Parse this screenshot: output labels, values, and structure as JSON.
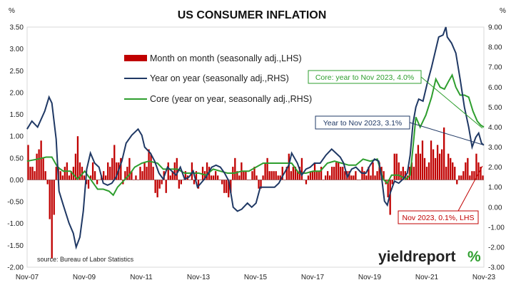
{
  "chart_data": {
    "type": "bar+line",
    "title": "US CONSUMER INFLATION",
    "left_unit": "%",
    "right_unit": "%",
    "ylim_left": [
      -2.0,
      3.5
    ],
    "ylim_right": [
      -3.0,
      9.0
    ],
    "left_ticks": [
      "3.50",
      "3.00",
      "2.50",
      "2.00",
      "1.50",
      "1.00",
      "0.50",
      "0.00",
      "-0.50",
      "-1.00",
      "-1.50",
      "-2.00"
    ],
    "right_ticks": [
      "9.00",
      "8.00",
      "7.00",
      "6.00",
      "5.00",
      "4.00",
      "3.00",
      "2.00",
      "1.00",
      "0.00",
      "-1.00",
      "-2.00",
      "-3.00"
    ],
    "x_ticks": [
      "Nov-07",
      "Nov-09",
      "Nov-11",
      "Nov-13",
      "Nov-15",
      "Nov-17",
      "Nov-19",
      "Nov-21",
      "Nov-23"
    ],
    "x_start": "2007-11",
    "x_end": "2023-11",
    "legend": [
      {
        "label": "Month on month (seasonally adj.,LHS)",
        "color": "#c00000",
        "kind": "bar"
      },
      {
        "label": "Year on year (seasonally adj.,RHS)",
        "color": "#1f3864",
        "kind": "line"
      },
      {
        "label": "Core (year on year, seasonally adj.,RHS)",
        "color": "#2e9e2e",
        "kind": "line"
      }
    ],
    "series": [
      {
        "name": "Month on month (seasonally adj.,LHS)",
        "axis": "left",
        "values": [
          0.8,
          0.3,
          0.3,
          0.2,
          0.6,
          0.7,
          0.9,
          0.5,
          0.2,
          -0.1,
          -0.9,
          -1.8,
          -0.8,
          0.3,
          0.3,
          0.2,
          0.1,
          0.3,
          0.4,
          0.1,
          0.2,
          0.3,
          0.6,
          1.0,
          0.4,
          0.3,
          0.1,
          -0.1,
          -0.2,
          0.1,
          0.4,
          0.2,
          -0.1,
          0.0,
          0.1,
          0.2,
          0.1,
          0.4,
          0.3,
          0.5,
          0.8,
          0.4,
          0.4,
          0.5,
          -0.1,
          0.2,
          0.3,
          0.5,
          0.2,
          0.0,
          0.1,
          0.0,
          0.3,
          0.2,
          0.4,
          0.3,
          0.7,
          0.6,
          0.3,
          -0.3,
          -0.4,
          -0.2,
          -0.1,
          0.2,
          -0.3,
          0.4,
          0.1,
          0.2,
          0.4,
          0.5,
          -0.2,
          -0.1,
          0.0,
          0.2,
          0.1,
          0.0,
          0.4,
          -0.1,
          0.2,
          -0.2,
          0.0,
          0.3,
          0.2,
          0.4,
          0.3,
          0.1,
          0.1,
          0.2,
          0.1,
          0.0,
          -0.1,
          -0.3,
          -0.3,
          -0.4,
          -0.3,
          0.3,
          0.5,
          0.2,
          0.1,
          0.4,
          0.2,
          0.2,
          0.0,
          0.0,
          0.2,
          0.3,
          0.1,
          -0.2,
          -0.2,
          0.1,
          0.4,
          0.5,
          0.2,
          0.2,
          0.2,
          0.2,
          0.1,
          0.1,
          0.3,
          0.0,
          0.3,
          0.6,
          0.2,
          0.3,
          0.3,
          0.2,
          0.3,
          0.5,
          0.0,
          -0.1,
          0.1,
          0.2,
          0.2,
          0.4,
          0.2,
          0.2,
          0.3,
          0.0,
          0.1,
          0.2,
          0.1,
          0.3,
          0.3,
          0.4,
          0.4,
          0.3,
          0.3,
          0.2,
          0.2,
          0.2,
          0.1,
          0.1,
          0.2,
          0.0,
          0.0,
          0.3,
          0.2,
          0.1,
          0.3,
          0.1,
          0.4,
          0.1,
          0.2,
          0.4,
          0.3,
          0.2,
          -0.1,
          -0.4,
          -0.8,
          -0.1,
          0.6,
          0.6,
          0.4,
          0.2,
          0.3,
          0.2,
          0.1,
          0.3,
          0.4,
          0.3,
          0.6,
          0.8,
          0.6,
          0.9,
          0.5,
          0.3,
          0.4,
          0.9,
          0.7,
          0.5,
          0.8,
          0.6,
          0.7,
          1.2,
          0.3,
          0.6,
          0.5,
          0.4,
          0.3,
          -0.1,
          0.1,
          0.1,
          0.2,
          0.4,
          0.5,
          0.1,
          0.2,
          0.2,
          0.6,
          0.4,
          0.3,
          0.1
        ]
      },
      {
        "name": "Year on year (seasonally adj.,RHS)",
        "axis": "right",
        "points": [
          [
            2007.83,
            3.9
          ],
          [
            2008.0,
            4.3
          ],
          [
            2008.2,
            4.0
          ],
          [
            2008.45,
            4.8
          ],
          [
            2008.6,
            5.5
          ],
          [
            2008.7,
            5.2
          ],
          [
            2008.85,
            3.4
          ],
          [
            2008.95,
            0.8
          ],
          [
            2009.1,
            0.1
          ],
          [
            2009.3,
            -0.8
          ],
          [
            2009.45,
            -1.3
          ],
          [
            2009.55,
            -2.0
          ],
          [
            2009.68,
            -1.5
          ],
          [
            2009.8,
            -0.2
          ],
          [
            2009.92,
            1.9
          ],
          [
            2010.05,
            2.7
          ],
          [
            2010.2,
            2.2
          ],
          [
            2010.35,
            2.0
          ],
          [
            2010.5,
            1.2
          ],
          [
            2010.65,
            1.1
          ],
          [
            2010.8,
            1.2
          ],
          [
            2010.95,
            1.5
          ],
          [
            2011.15,
            2.3
          ],
          [
            2011.3,
            3.2
          ],
          [
            2011.5,
            3.6
          ],
          [
            2011.72,
            3.9
          ],
          [
            2011.85,
            3.6
          ],
          [
            2011.95,
            3.0
          ],
          [
            2012.15,
            2.7
          ],
          [
            2012.3,
            2.3
          ],
          [
            2012.45,
            1.7
          ],
          [
            2012.6,
            1.4
          ],
          [
            2012.75,
            2.0
          ],
          [
            2012.9,
            1.8
          ],
          [
            2013.05,
            1.6
          ],
          [
            2013.2,
            2.0
          ],
          [
            2013.35,
            1.4
          ],
          [
            2013.5,
            1.5
          ],
          [
            2013.65,
            1.8
          ],
          [
            2013.8,
            1.0
          ],
          [
            2013.92,
            1.2
          ],
          [
            2014.1,
            1.5
          ],
          [
            2014.3,
            2.0
          ],
          [
            2014.45,
            2.1
          ],
          [
            2014.6,
            2.0
          ],
          [
            2014.75,
            1.7
          ],
          [
            2014.9,
            1.3
          ],
          [
            2015.05,
            0.0
          ],
          [
            2015.2,
            -0.2
          ],
          [
            2015.35,
            -0.1
          ],
          [
            2015.55,
            0.2
          ],
          [
            2015.7,
            0.0
          ],
          [
            2015.85,
            0.2
          ],
          [
            2016.0,
            1.0
          ],
          [
            2016.15,
            1.0
          ],
          [
            2016.35,
            1.0
          ],
          [
            2016.5,
            1.0
          ],
          [
            2016.65,
            1.2
          ],
          [
            2016.8,
            1.6
          ],
          [
            2017.0,
            2.1
          ],
          [
            2017.1,
            2.7
          ],
          [
            2017.3,
            2.2
          ],
          [
            2017.45,
            1.6
          ],
          [
            2017.6,
            1.9
          ],
          [
            2017.75,
            2.0
          ],
          [
            2017.9,
            2.2
          ],
          [
            2018.1,
            2.2
          ],
          [
            2018.3,
            2.6
          ],
          [
            2018.5,
            2.9
          ],
          [
            2018.65,
            2.7
          ],
          [
            2018.8,
            2.5
          ],
          [
            2018.92,
            2.2
          ],
          [
            2019.05,
            1.5
          ],
          [
            2019.2,
            1.9
          ],
          [
            2019.35,
            2.0
          ],
          [
            2019.55,
            1.7
          ],
          [
            2019.7,
            1.7
          ],
          [
            2019.85,
            2.1
          ],
          [
            2020.0,
            2.4
          ],
          [
            2020.15,
            2.3
          ],
          [
            2020.25,
            1.5
          ],
          [
            2020.35,
            0.3
          ],
          [
            2020.45,
            0.1
          ],
          [
            2020.55,
            0.7
          ],
          [
            2020.7,
            1.3
          ],
          [
            2020.85,
            1.2
          ],
          [
            2021.0,
            1.4
          ],
          [
            2021.15,
            1.7
          ],
          [
            2021.25,
            2.6
          ],
          [
            2021.35,
            4.2
          ],
          [
            2021.45,
            5.0
          ],
          [
            2021.55,
            5.4
          ],
          [
            2021.7,
            5.3
          ],
          [
            2021.85,
            6.2
          ],
          [
            2022.0,
            7.0
          ],
          [
            2022.15,
            7.9
          ],
          [
            2022.25,
            8.5
          ],
          [
            2022.4,
            8.6
          ],
          [
            2022.5,
            9.0
          ],
          [
            2022.55,
            8.5
          ],
          [
            2022.7,
            8.2
          ],
          [
            2022.85,
            7.7
          ],
          [
            2023.0,
            6.4
          ],
          [
            2023.15,
            5.0
          ],
          [
            2023.3,
            4.0
          ],
          [
            2023.42,
            3.0
          ],
          [
            2023.55,
            3.5
          ],
          [
            2023.65,
            3.7
          ],
          [
            2023.75,
            3.2
          ],
          [
            2023.83,
            3.1
          ]
        ]
      },
      {
        "name": "Core (year on year, seasonally adj.,RHS)",
        "axis": "right",
        "points": [
          [
            2007.83,
            2.3
          ],
          [
            2008.2,
            2.4
          ],
          [
            2008.5,
            2.5
          ],
          [
            2008.7,
            2.5
          ],
          [
            2008.9,
            2.0
          ],
          [
            2009.1,
            1.8
          ],
          [
            2009.35,
            1.8
          ],
          [
            2009.6,
            1.4
          ],
          [
            2009.85,
            1.8
          ],
          [
            2010.1,
            1.3
          ],
          [
            2010.3,
            0.9
          ],
          [
            2010.5,
            0.9
          ],
          [
            2010.7,
            0.8
          ],
          [
            2010.85,
            0.6
          ],
          [
            2011.0,
            1.0
          ],
          [
            2011.2,
            1.3
          ],
          [
            2011.4,
            1.6
          ],
          [
            2011.6,
            2.0
          ],
          [
            2011.85,
            2.2
          ],
          [
            2012.1,
            2.3
          ],
          [
            2012.4,
            2.2
          ],
          [
            2012.6,
            1.9
          ],
          [
            2012.85,
            1.9
          ],
          [
            2013.1,
            1.9
          ],
          [
            2013.35,
            1.7
          ],
          [
            2013.6,
            1.7
          ],
          [
            2013.85,
            1.7
          ],
          [
            2014.1,
            1.6
          ],
          [
            2014.35,
            1.9
          ],
          [
            2014.6,
            1.8
          ],
          [
            2014.85,
            1.7
          ],
          [
            2015.1,
            1.7
          ],
          [
            2015.35,
            1.8
          ],
          [
            2015.6,
            1.8
          ],
          [
            2015.85,
            2.0
          ],
          [
            2016.1,
            2.2
          ],
          [
            2016.35,
            2.2
          ],
          [
            2016.6,
            2.2
          ],
          [
            2016.85,
            2.2
          ],
          [
            2017.1,
            2.2
          ],
          [
            2017.35,
            1.7
          ],
          [
            2017.6,
            1.7
          ],
          [
            2017.85,
            1.8
          ],
          [
            2018.1,
            1.8
          ],
          [
            2018.35,
            2.2
          ],
          [
            2018.6,
            2.3
          ],
          [
            2018.85,
            2.2
          ],
          [
            2019.1,
            2.1
          ],
          [
            2019.35,
            2.1
          ],
          [
            2019.6,
            2.4
          ],
          [
            2019.85,
            2.3
          ],
          [
            2020.1,
            2.4
          ],
          [
            2020.3,
            1.4
          ],
          [
            2020.45,
            1.2
          ],
          [
            2020.6,
            1.6
          ],
          [
            2020.85,
            1.6
          ],
          [
            2021.1,
            1.4
          ],
          [
            2021.25,
            1.6
          ],
          [
            2021.35,
            3.0
          ],
          [
            2021.45,
            4.5
          ],
          [
            2021.6,
            4.0
          ],
          [
            2021.8,
            4.6
          ],
          [
            2022.0,
            5.5
          ],
          [
            2022.15,
            6.4
          ],
          [
            2022.3,
            6.0
          ],
          [
            2022.45,
            5.9
          ],
          [
            2022.6,
            6.3
          ],
          [
            2022.72,
            6.6
          ],
          [
            2022.85,
            6.0
          ],
          [
            2023.0,
            5.6
          ],
          [
            2023.15,
            5.6
          ],
          [
            2023.3,
            5.5
          ],
          [
            2023.45,
            4.8
          ],
          [
            2023.6,
            4.3
          ],
          [
            2023.72,
            4.1
          ],
          [
            2023.83,
            4.0
          ]
        ]
      }
    ],
    "annotations": [
      {
        "text": "Core: year to Nov 2023, 4.0%",
        "color": "#2e9e2e"
      },
      {
        "text": "Year to Nov 2023, 3.1%",
        "color": "#1f3864"
      },
      {
        "text": "Nov 2023, 0.1%, LHS",
        "color": "#c00000"
      }
    ],
    "source": "source: Bureau of Labor Statistics",
    "logo_word": "yieldreport",
    "logo_pct": "%"
  }
}
